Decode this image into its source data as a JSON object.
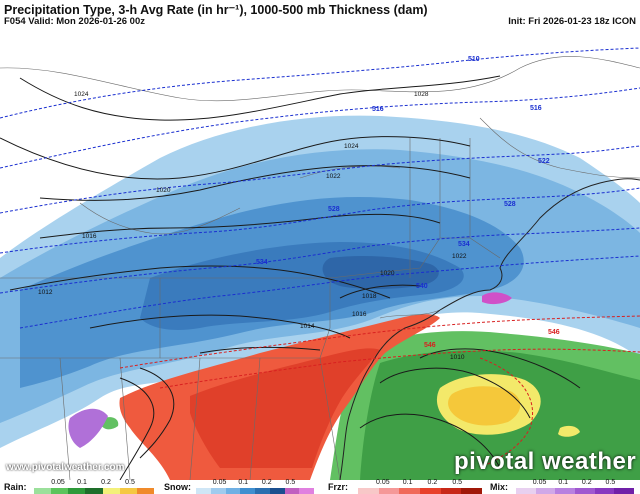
{
  "header": {
    "title": "Precipitation Type, 3-h Avg Rate (in hr⁻¹), 1000-500 mb Thickness (dam)",
    "valid": "F054 Valid: Mon 2026-01-26 00z",
    "init": "Init: Fri 2026-01-23 18z ICON"
  },
  "watermark": {
    "site": "www.pivotalweather.com",
    "brand": "pivotal weather"
  },
  "thickness_labels": [
    "510",
    "516",
    "522",
    "528",
    "534",
    "540",
    "546"
  ],
  "pressure_labels": [
    "1024",
    "1028",
    "1024",
    "1022",
    "1020",
    "1016",
    "1012",
    "1014",
    "1016",
    "1018",
    "1020",
    "1022",
    "1010"
  ],
  "legend": {
    "rain": {
      "label": "Rain:",
      "ticks": [
        "0.05",
        "0.1",
        "0.2",
        "0.5"
      ],
      "colors": [
        "#9be09b",
        "#5cc45c",
        "#2e9a3a",
        "#1e6e2a",
        "#f3f07a",
        "#f5c842",
        "#f08a2a"
      ]
    },
    "snow": {
      "label": "Snow:",
      "ticks": [
        "0.05",
        "0.1",
        "0.2",
        "0.5"
      ],
      "colors": [
        "#cfe6f6",
        "#9fcbee",
        "#6fb0e4",
        "#3f8fd0",
        "#2a6fb0",
        "#1a4f8f",
        "#c060c0",
        "#e080e0"
      ]
    },
    "frzr": {
      "label": "Frzr:",
      "ticks": [
        "0.05",
        "0.1",
        "0.2",
        "0.5"
      ],
      "colors": [
        "#f8c8c8",
        "#f59898",
        "#f06a5a",
        "#e8402a",
        "#c82818",
        "#a01808"
      ]
    },
    "mix": {
      "label": "Mix:",
      "ticks": [
        "0.05",
        "0.1",
        "0.2",
        "0.5"
      ],
      "colors": [
        "#e8d0f0",
        "#d0a8e8",
        "#b880e0",
        "#a058d0",
        "#8838c0",
        "#7020a8"
      ]
    }
  }
}
